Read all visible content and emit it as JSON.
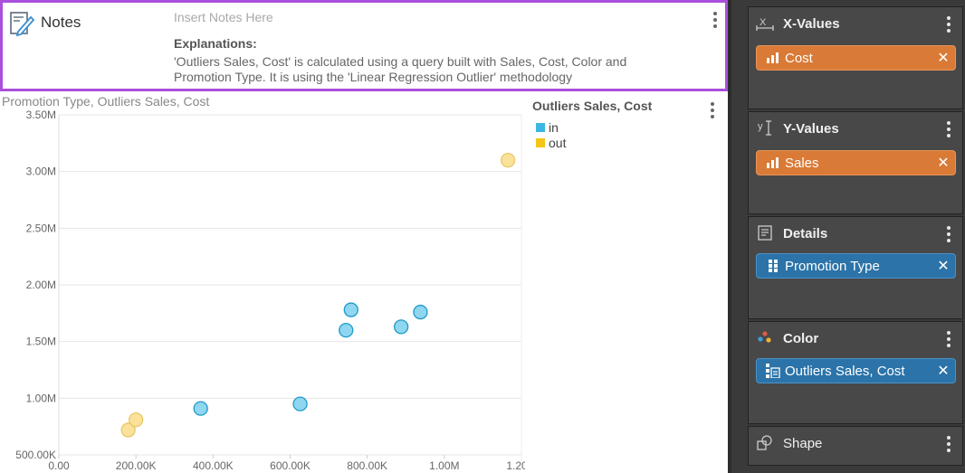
{
  "notes": {
    "title": "Notes",
    "placeholder": "Insert Notes Here",
    "heading": "Explanations:",
    "body": "'Outliers Sales, Cost' is calculated using a query built with Sales, Cost, Color and Promotion Type. It is using the 'Linear Regression Outlier' methodology"
  },
  "chart_data": {
    "type": "scatter",
    "title": "Promotion Type, Outliers Sales, Cost",
    "xlim": [
      0,
      1200000
    ],
    "ylim": [
      500000,
      3500000
    ],
    "x_ticks": [
      "0.00",
      "200.00K",
      "400.00K",
      "600.00K",
      "800.00K",
      "1.00M",
      "1.20M"
    ],
    "y_ticks": [
      "500.00K",
      "1.00M",
      "1.50M",
      "2.00M",
      "2.50M",
      "3.00M",
      "3.50M"
    ],
    "legend_title": "Outliers Sales, Cost",
    "series": [
      {
        "name": "in",
        "color": "#3cb7e3",
        "points": [
          [
            368000,
            910000
          ],
          [
            626000,
            950000
          ],
          [
            745000,
            1600000
          ],
          [
            758000,
            1780000
          ],
          [
            888000,
            1630000
          ],
          [
            938000,
            1760000
          ]
        ]
      },
      {
        "name": "out",
        "color": "#f5c518",
        "points": [
          [
            180000,
            720000
          ],
          [
            200000,
            810000
          ],
          [
            1165000,
            3100000
          ]
        ]
      }
    ]
  },
  "fields": {
    "x_values": {
      "title": "X-Values",
      "pill": "Cost",
      "icon": "x-axis-icon"
    },
    "y_values": {
      "title": "Y-Values",
      "pill": "Sales",
      "icon": "y-axis-icon"
    },
    "details": {
      "title": "Details",
      "pill": "Promotion Type",
      "icon": "details-icon"
    },
    "color": {
      "title": "Color",
      "pill": "Outliers Sales, Cost",
      "icon": "color-palette-icon"
    },
    "shape": {
      "title": "Shape",
      "icon": "shape-icon"
    }
  },
  "close_glyph": "✕"
}
